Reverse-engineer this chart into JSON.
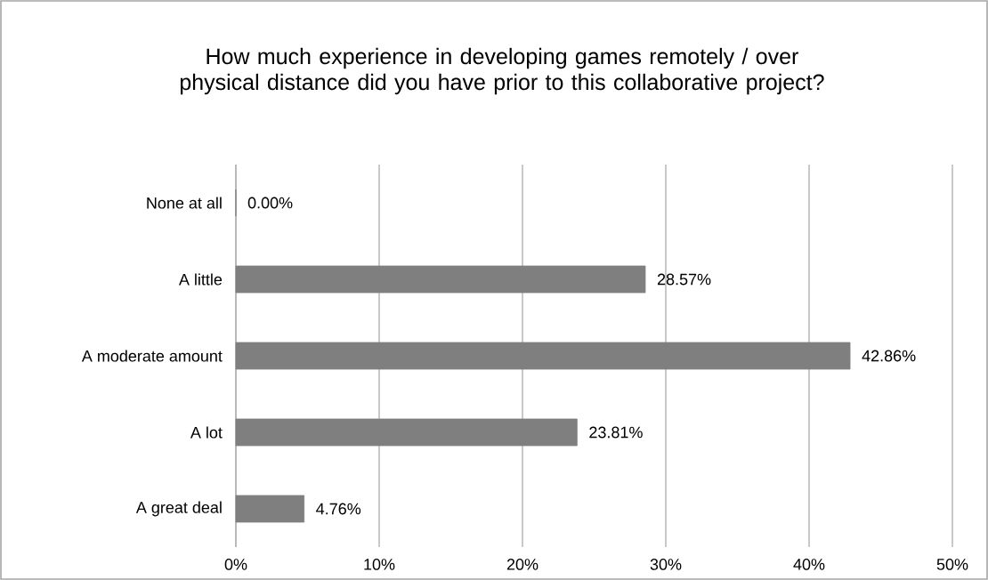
{
  "chart_data": {
    "type": "bar",
    "orientation": "horizontal",
    "title": "How much experience in developing games remotely / over physical distance did you have prior to this collaborative project?",
    "categories": [
      "None at all",
      "A little",
      "A moderate amount",
      "A lot",
      "A great deal"
    ],
    "values": [
      0,
      28.57,
      42.86,
      23.81,
      4.76
    ],
    "value_labels": [
      "0.00%",
      "28.57%",
      "42.86%",
      "23.81%",
      "4.76%"
    ],
    "color": "#7f7f7f",
    "xlim": [
      0,
      50
    ],
    "xticks": [
      {
        "value": 0,
        "label": "0%"
      },
      {
        "value": 10,
        "label": "10%"
      },
      {
        "value": 20,
        "label": "20%"
      },
      {
        "value": 30,
        "label": "30%"
      },
      {
        "value": 40,
        "label": "40%"
      },
      {
        "value": 50,
        "label": "50%"
      }
    ],
    "grid": "x"
  }
}
